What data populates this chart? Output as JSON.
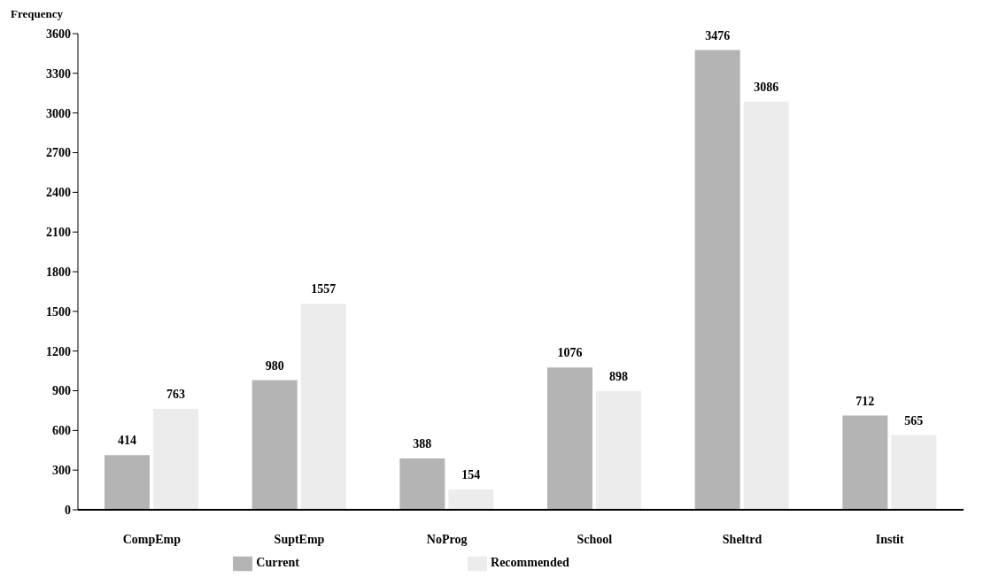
{
  "chart_data": {
    "type": "bar",
    "ylabel": "Frequency",
    "categories": [
      "CompEmp",
      "SuptEmp",
      "NoProg",
      "School",
      "Sheltrd",
      "Instit"
    ],
    "series": [
      {
        "name": "Current",
        "color": "#b4b4b4",
        "values": [
          414,
          980,
          388,
          1076,
          3476,
          712
        ]
      },
      {
        "name": "Recommended",
        "color": "#ececec",
        "values": [
          763,
          1557,
          154,
          898,
          3086,
          565
        ]
      }
    ],
    "ylim": [
      0,
      3600
    ],
    "yticks": [
      0,
      300,
      600,
      900,
      1200,
      1500,
      1800,
      2100,
      2400,
      2700,
      3000,
      3300,
      3600
    ],
    "grid": false,
    "legend": "bottom",
    "data_labels": true
  }
}
